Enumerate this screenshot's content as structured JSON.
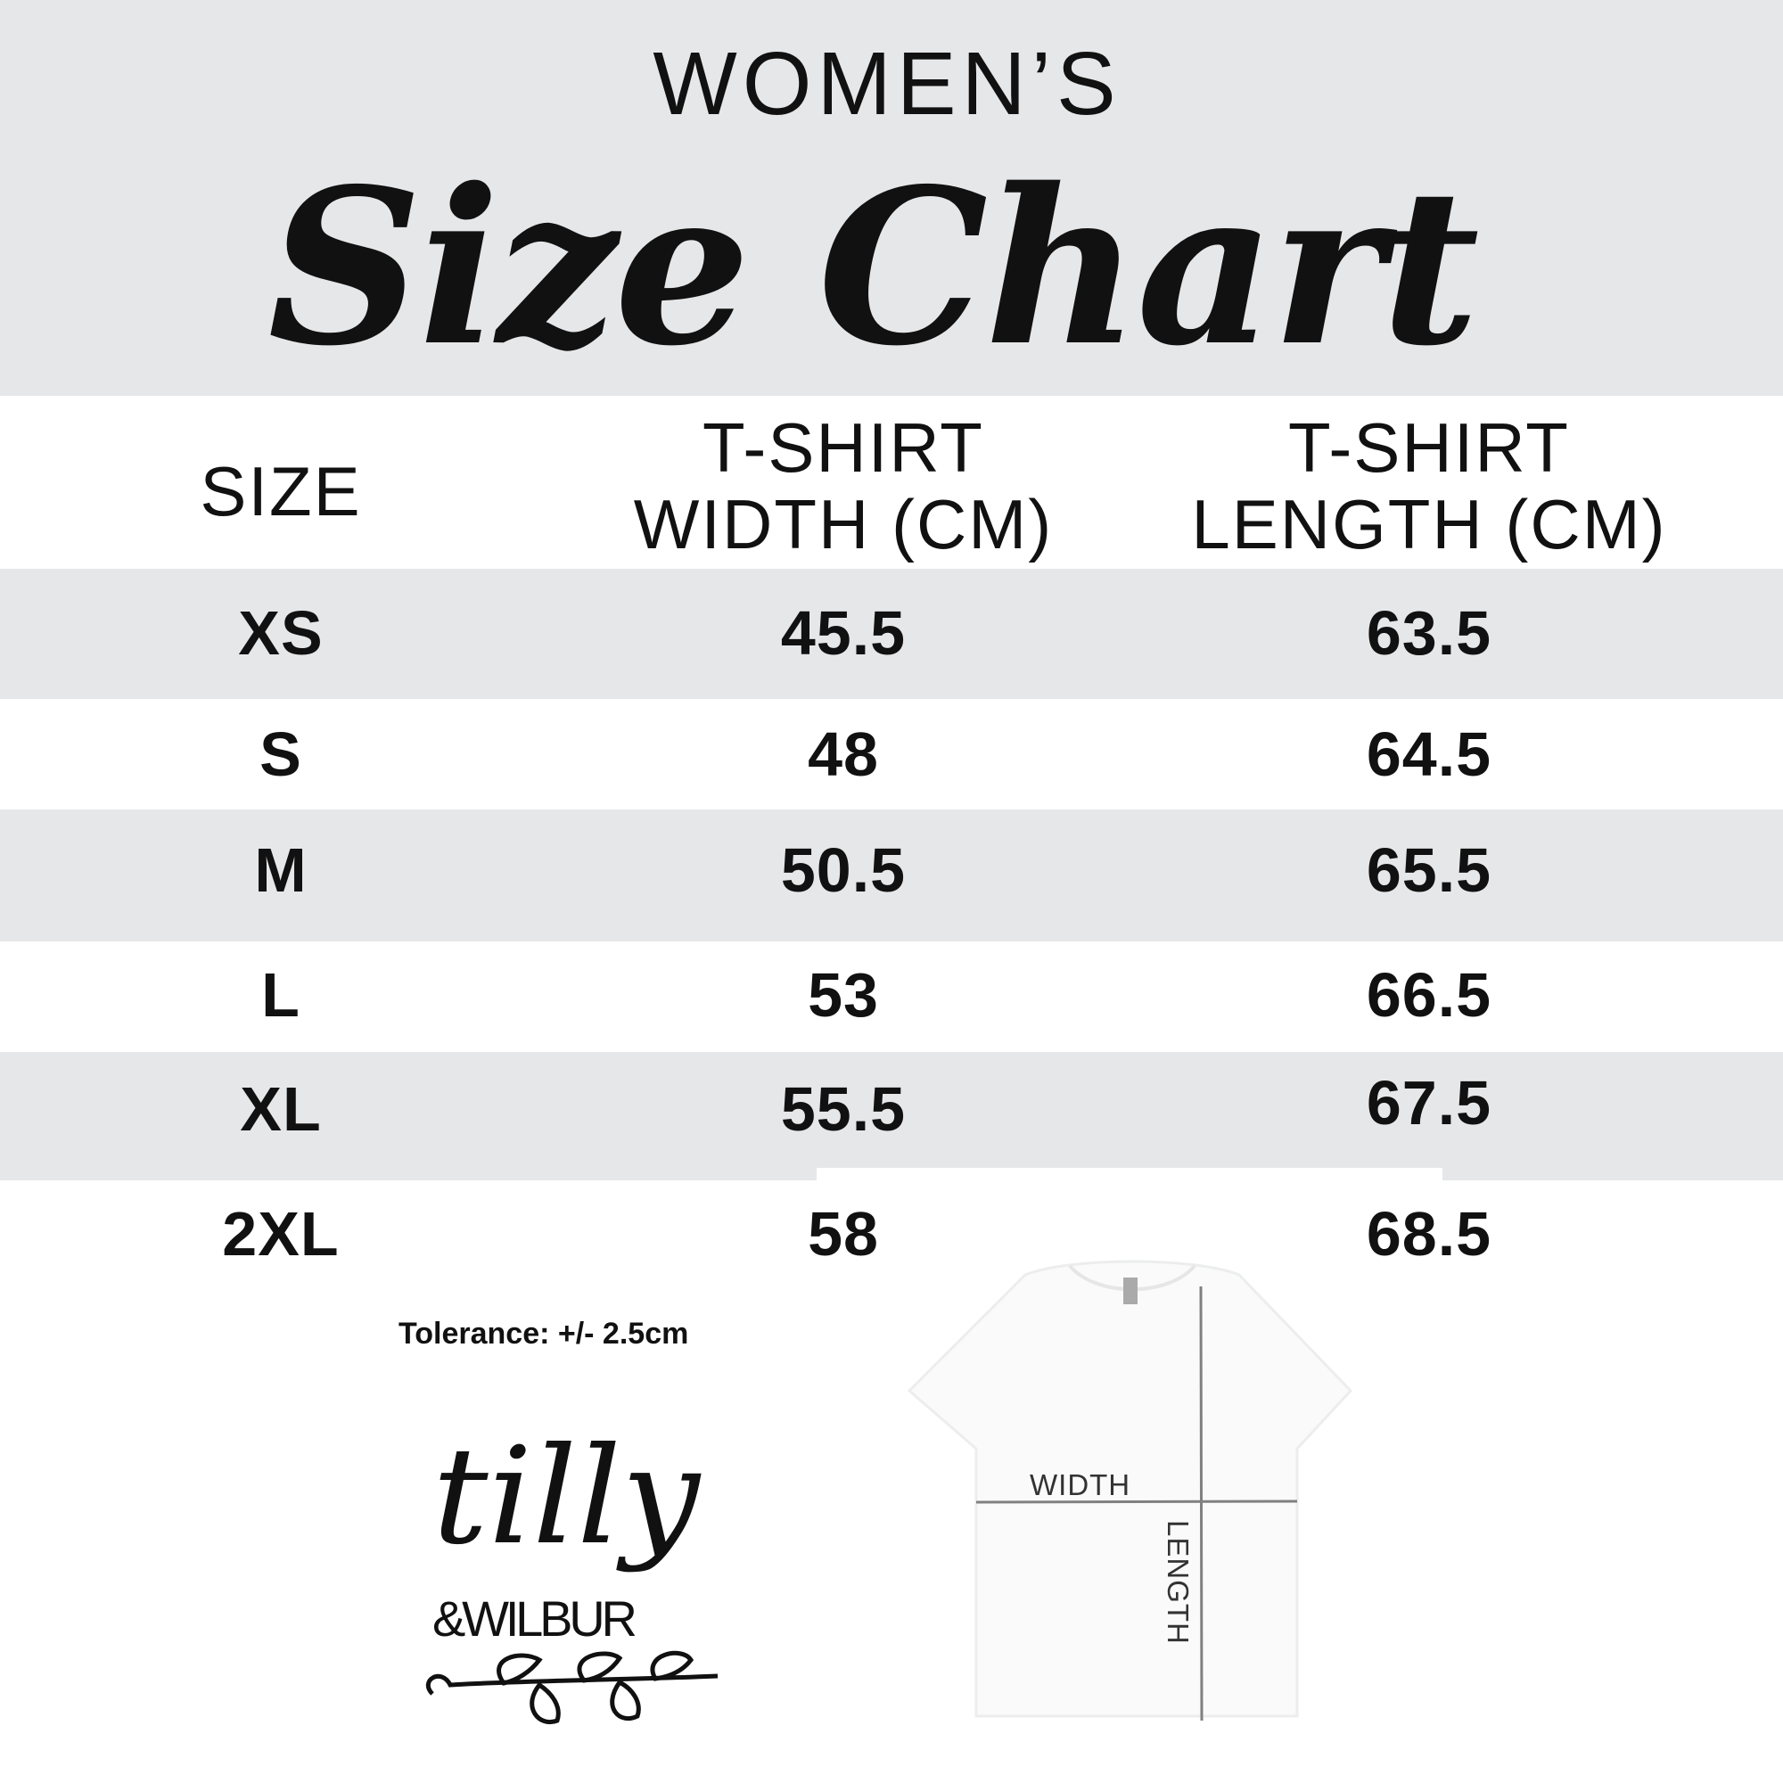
{
  "header": {
    "line1": "WOMEN’S",
    "line2": "Size Chart"
  },
  "table": {
    "columns": [
      "SIZE",
      "T-SHIRT\nWIDTH (CM)",
      "T-SHIRT\nLENGTH (CM)"
    ],
    "column_lines": [
      [
        "SIZE"
      ],
      [
        "T-SHIRT",
        "WIDTH (CM)"
      ],
      [
        "T-SHIRT",
        "LENGTH (CM)"
      ]
    ],
    "rows": [
      {
        "size": "XS",
        "width": "45.5",
        "length": "63.5"
      },
      {
        "size": "S",
        "width": "48",
        "length": "64.5"
      },
      {
        "size": "M",
        "width": "50.5",
        "length": "65.5"
      },
      {
        "size": "L",
        "width": "53",
        "length": "66.5"
      },
      {
        "size": "XL",
        "width": "55.5",
        "length": "67.5"
      },
      {
        "size": "2XL",
        "width": "58",
        "length": "68.5"
      }
    ]
  },
  "tolerance": "Tolerance: +/- 2.5cm",
  "diagram": {
    "width_label": "WIDTH",
    "length_label": "LENGTH"
  },
  "logo": {
    "text_top": "tilly",
    "text_bottom": "&WILBUR"
  },
  "colors": {
    "band": "#e6e7e9",
    "text": "#111111",
    "measure_line": "#808080"
  }
}
